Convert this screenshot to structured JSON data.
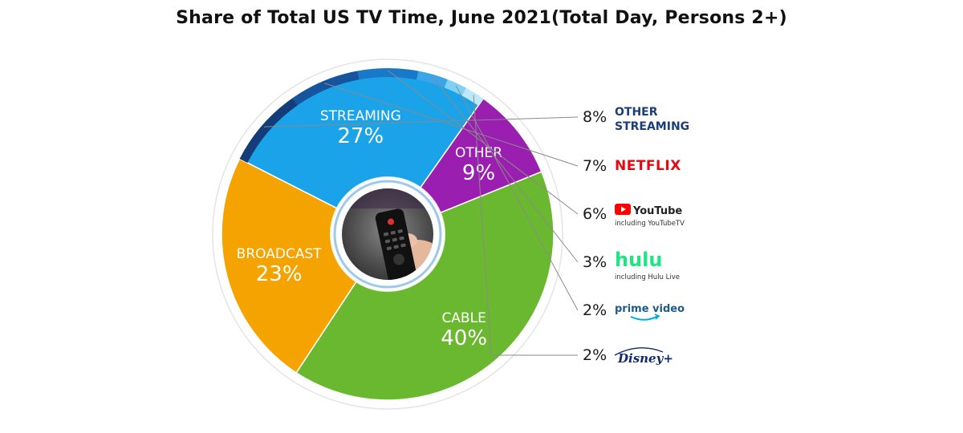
{
  "title": "Share of Total US TV Time, June 2021(Total Day, Persons 2+)",
  "colors": {
    "broadcast": "#f5a300",
    "streaming": "#1aa3e8",
    "other": "#9a1fb0",
    "cable": "#6ab82f",
    "other_streaming": "#143c78",
    "netflix_band": "#17549e",
    "youtube_band": "#1a78c8",
    "hulu_band": "#3aa5e8",
    "prime_band": "#7fd2f4",
    "disney_band": "#bfe8fb",
    "netflix_brand": "#e50914",
    "youtube_brand": "#ff0000",
    "hulu_brand": "#1ce783",
    "prime_brand": "#00a8e1",
    "disney_brand": "#0f2a6b",
    "other_streaming_brand": "#1c3d78"
  },
  "chart_data": {
    "type": "pie",
    "title": "Share of Total US TV Time, June 2021(Total Day, Persons 2+)",
    "unit": "%",
    "slices": [
      {
        "key": "streaming",
        "name": "STREAMING",
        "value": 27,
        "label": "27%"
      },
      {
        "key": "other",
        "name": "OTHER",
        "value": 9,
        "label": "9%"
      },
      {
        "key": "cable",
        "name": "CABLE",
        "value": 40,
        "label": "40%"
      },
      {
        "key": "broadcast",
        "name": "BROADCAST",
        "value": 23,
        "label": "23%"
      }
    ],
    "streaming_breakdown": [
      {
        "key": "other_streaming",
        "name": "OTHER STREAMING",
        "value": 8,
        "label": "8%",
        "note": ""
      },
      {
        "key": "netflix",
        "name": "NETFLIX",
        "value": 7,
        "label": "7%",
        "note": ""
      },
      {
        "key": "youtube",
        "name": "YouTube",
        "value": 6,
        "label": "6%",
        "note": "including YouTubeTV"
      },
      {
        "key": "hulu",
        "name": "hulu",
        "value": 3,
        "label": "3%",
        "note": "including Hulu Live"
      },
      {
        "key": "prime",
        "name": "prime video",
        "value": 2,
        "label": "2%",
        "note": ""
      },
      {
        "key": "disney",
        "name": "Disney+",
        "value": 2,
        "label": "2%",
        "note": ""
      }
    ],
    "center_image": "tv-remote-photo"
  }
}
